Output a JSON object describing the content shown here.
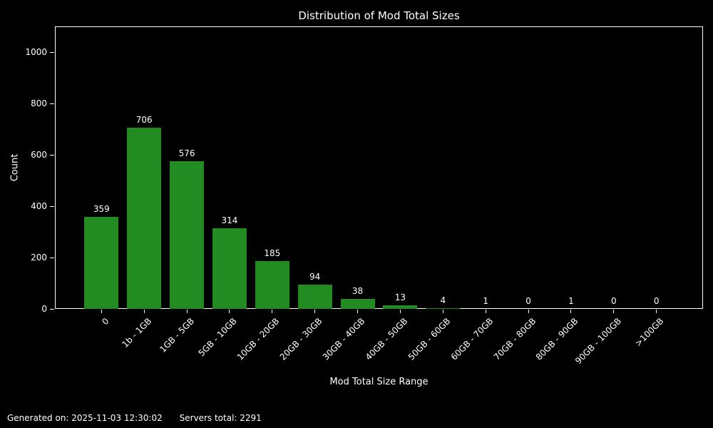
{
  "chart_data": {
    "type": "bar",
    "title": "Distribution of Mod Total Sizes",
    "xlabel": "Mod Total Size Range",
    "ylabel": "Count",
    "categories": [
      "0",
      "1b - 1GB",
      "1GB - 5GB",
      "5GB - 10GB",
      "10GB - 20GB",
      "20GB - 30GB",
      "30GB - 40GB",
      "40GB - 50GB",
      "50GB - 60GB",
      "60GB - 70GB",
      "70GB - 80GB",
      "80GB - 90GB",
      "90GB - 100GB",
      ">100GB"
    ],
    "values": [
      359,
      706,
      576,
      314,
      185,
      94,
      38,
      13,
      4,
      1,
      0,
      1,
      0,
      0
    ],
    "yticks": [
      0,
      200,
      400,
      600,
      800,
      1000
    ],
    "ylim": [
      0,
      1100
    ],
    "x_tick_rotation_deg": 45,
    "grid": false,
    "legend": "none",
    "bar_labels": true,
    "bar_color": "#228B22",
    "background_color": "#000000",
    "text_color": "#ffffff"
  },
  "footer": {
    "generated": "Generated on: 2025-11-03 12:30:02",
    "servers_total": "Servers total: 2291"
  }
}
